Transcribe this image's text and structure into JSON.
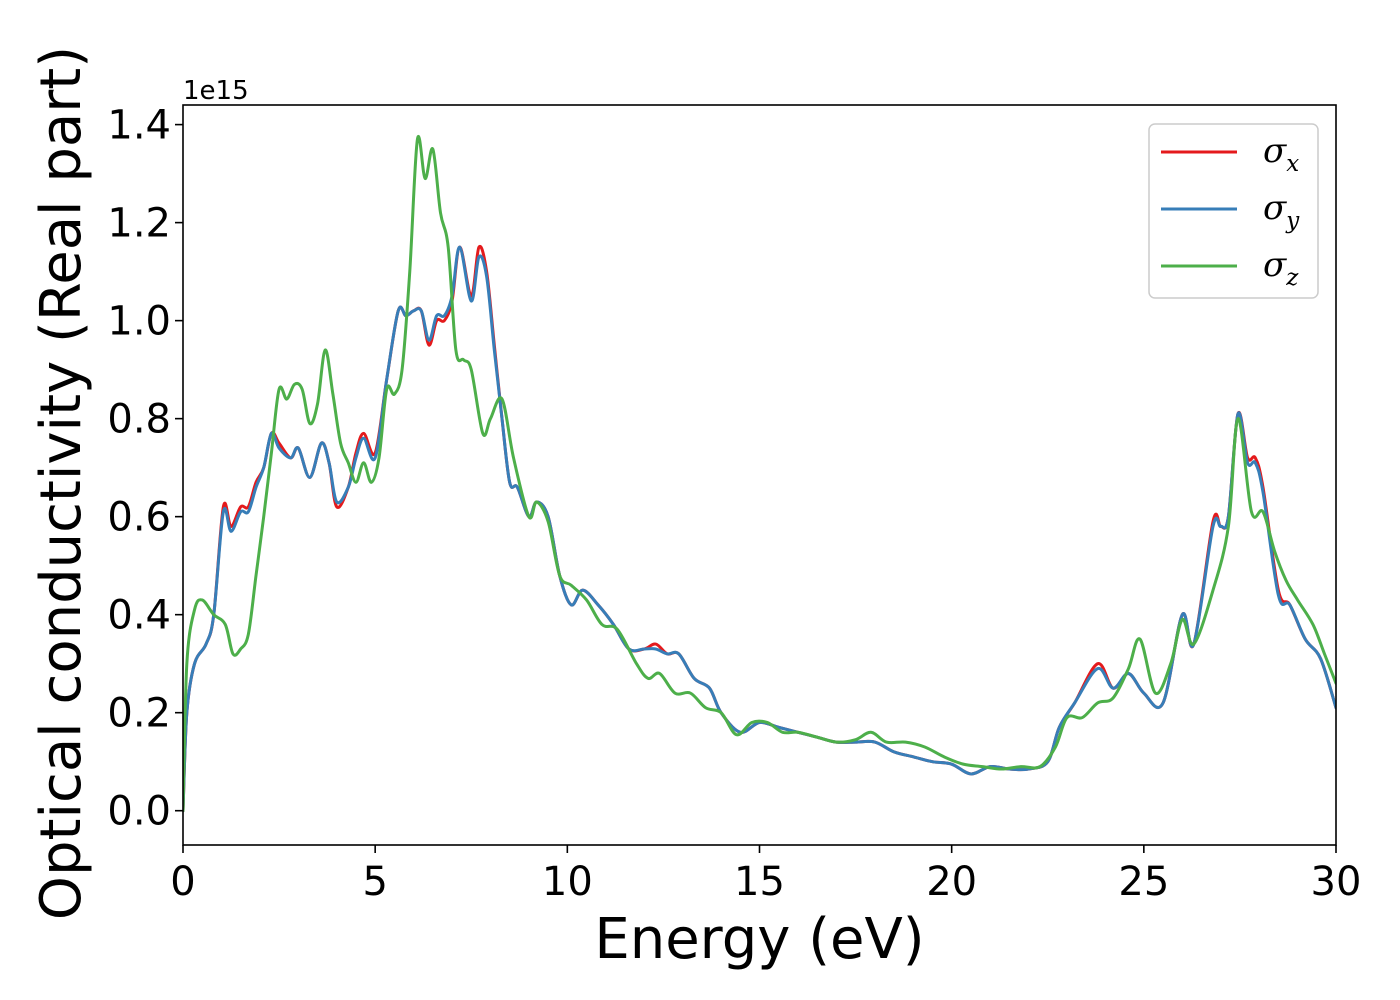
{
  "chart_data": {
    "type": "line",
    "xlabel": "Energy (eV)",
    "ylabel": "Optical conductivity (Real part)",
    "y_offset_text": "1e15",
    "y_multiplier": 1000000000000000.0,
    "xlim": [
      0,
      30
    ],
    "ylim": [
      -0.07,
      1.44
    ],
    "xticks": [
      0,
      5,
      10,
      15,
      20,
      25,
      30
    ],
    "xtick_labels": [
      "0",
      "5",
      "10",
      "15",
      "20",
      "25",
      "30"
    ],
    "yticks": [
      0.0,
      0.2,
      0.4,
      0.6,
      0.8,
      1.0,
      1.2,
      1.4
    ],
    "ytick_labels": [
      "0.0",
      "0.2",
      "0.4",
      "0.6",
      "0.8",
      "1.0",
      "1.2",
      "1.4"
    ],
    "grid": false,
    "legend_position": "top-right",
    "series": [
      {
        "name": "σx",
        "legend_symbol": "σ",
        "legend_subscript": "x",
        "color": "#e41a1c",
        "points": [
          [
            0,
            0
          ],
          [
            0.1,
            0.2
          ],
          [
            0.3,
            0.3
          ],
          [
            0.6,
            0.34
          ],
          [
            0.8,
            0.4
          ],
          [
            1.05,
            0.62
          ],
          [
            1.25,
            0.58
          ],
          [
            1.5,
            0.62
          ],
          [
            1.7,
            0.62
          ],
          [
            1.9,
            0.67
          ],
          [
            2.1,
            0.7
          ],
          [
            2.3,
            0.77
          ],
          [
            2.5,
            0.75
          ],
          [
            2.8,
            0.72
          ],
          [
            3.0,
            0.74
          ],
          [
            3.3,
            0.68
          ],
          [
            3.6,
            0.75
          ],
          [
            3.8,
            0.71
          ],
          [
            4.0,
            0.62
          ],
          [
            4.3,
            0.66
          ],
          [
            4.5,
            0.73
          ],
          [
            4.7,
            0.77
          ],
          [
            5.0,
            0.73
          ],
          [
            5.3,
            0.88
          ],
          [
            5.6,
            1.02
          ],
          [
            5.8,
            1.01
          ],
          [
            6.0,
            1.02
          ],
          [
            6.2,
            1.02
          ],
          [
            6.4,
            0.95
          ],
          [
            6.6,
            1.0
          ],
          [
            6.8,
            1.0
          ],
          [
            7.0,
            1.04
          ],
          [
            7.2,
            1.15
          ],
          [
            7.5,
            1.05
          ],
          [
            7.7,
            1.15
          ],
          [
            7.9,
            1.1
          ],
          [
            8.1,
            0.95
          ],
          [
            8.3,
            0.8
          ],
          [
            8.5,
            0.67
          ],
          [
            8.7,
            0.66
          ],
          [
            9.0,
            0.6
          ],
          [
            9.2,
            0.63
          ],
          [
            9.5,
            0.6
          ],
          [
            9.8,
            0.48
          ],
          [
            10.1,
            0.42
          ],
          [
            10.4,
            0.45
          ],
          [
            10.8,
            0.42
          ],
          [
            11.2,
            0.38
          ],
          [
            11.6,
            0.33
          ],
          [
            12.0,
            0.33
          ],
          [
            12.3,
            0.34
          ],
          [
            12.6,
            0.32
          ],
          [
            12.9,
            0.32
          ],
          [
            13.3,
            0.27
          ],
          [
            13.7,
            0.25
          ],
          [
            14.0,
            0.2
          ],
          [
            14.5,
            0.16
          ],
          [
            15.0,
            0.18
          ],
          [
            15.5,
            0.17
          ],
          [
            16.0,
            0.16
          ],
          [
            16.5,
            0.15
          ],
          [
            17.0,
            0.14
          ],
          [
            17.5,
            0.14
          ],
          [
            18.0,
            0.14
          ],
          [
            18.5,
            0.12
          ],
          [
            19.0,
            0.11
          ],
          [
            19.5,
            0.1
          ],
          [
            20.0,
            0.095
          ],
          [
            20.5,
            0.075
          ],
          [
            21.0,
            0.09
          ],
          [
            21.5,
            0.085
          ],
          [
            22.0,
            0.085
          ],
          [
            22.5,
            0.1
          ],
          [
            22.8,
            0.17
          ],
          [
            23.2,
            0.22
          ],
          [
            23.8,
            0.3
          ],
          [
            24.2,
            0.25
          ],
          [
            24.6,
            0.28
          ],
          [
            25.0,
            0.24
          ],
          [
            25.5,
            0.22
          ],
          [
            26.0,
            0.4
          ],
          [
            26.3,
            0.34
          ],
          [
            26.8,
            0.59
          ],
          [
            27.0,
            0.58
          ],
          [
            27.2,
            0.6
          ],
          [
            27.45,
            0.81
          ],
          [
            27.7,
            0.72
          ],
          [
            27.9,
            0.72
          ],
          [
            28.1,
            0.66
          ],
          [
            28.5,
            0.45
          ],
          [
            28.8,
            0.42
          ],
          [
            29.2,
            0.35
          ],
          [
            29.6,
            0.31
          ],
          [
            30.0,
            0.21
          ]
        ]
      },
      {
        "name": "σy",
        "legend_symbol": "σ",
        "legend_subscript": "y",
        "color": "#377eb8",
        "points": [
          [
            0,
            0
          ],
          [
            0.1,
            0.2
          ],
          [
            0.3,
            0.3
          ],
          [
            0.6,
            0.34
          ],
          [
            0.8,
            0.4
          ],
          [
            1.05,
            0.61
          ],
          [
            1.25,
            0.57
          ],
          [
            1.5,
            0.61
          ],
          [
            1.7,
            0.61
          ],
          [
            1.9,
            0.66
          ],
          [
            2.1,
            0.7
          ],
          [
            2.3,
            0.77
          ],
          [
            2.5,
            0.74
          ],
          [
            2.8,
            0.72
          ],
          [
            3.0,
            0.74
          ],
          [
            3.3,
            0.68
          ],
          [
            3.6,
            0.75
          ],
          [
            3.8,
            0.71
          ],
          [
            4.0,
            0.63
          ],
          [
            4.3,
            0.66
          ],
          [
            4.5,
            0.72
          ],
          [
            4.7,
            0.76
          ],
          [
            5.0,
            0.72
          ],
          [
            5.3,
            0.88
          ],
          [
            5.6,
            1.02
          ],
          [
            5.8,
            1.01
          ],
          [
            6.0,
            1.02
          ],
          [
            6.2,
            1.02
          ],
          [
            6.4,
            0.96
          ],
          [
            6.6,
            1.01
          ],
          [
            6.8,
            1.01
          ],
          [
            7.0,
            1.05
          ],
          [
            7.2,
            1.15
          ],
          [
            7.5,
            1.04
          ],
          [
            7.7,
            1.13
          ],
          [
            7.9,
            1.09
          ],
          [
            8.1,
            0.94
          ],
          [
            8.3,
            0.8
          ],
          [
            8.5,
            0.67
          ],
          [
            8.7,
            0.66
          ],
          [
            9.0,
            0.6
          ],
          [
            9.2,
            0.63
          ],
          [
            9.5,
            0.6
          ],
          [
            9.8,
            0.48
          ],
          [
            10.1,
            0.42
          ],
          [
            10.4,
            0.45
          ],
          [
            10.8,
            0.42
          ],
          [
            11.2,
            0.38
          ],
          [
            11.6,
            0.33
          ],
          [
            12.0,
            0.33
          ],
          [
            12.3,
            0.33
          ],
          [
            12.6,
            0.32
          ],
          [
            12.9,
            0.32
          ],
          [
            13.3,
            0.27
          ],
          [
            13.7,
            0.25
          ],
          [
            14.0,
            0.2
          ],
          [
            14.5,
            0.16
          ],
          [
            15.0,
            0.18
          ],
          [
            15.5,
            0.17
          ],
          [
            16.0,
            0.16
          ],
          [
            16.5,
            0.15
          ],
          [
            17.0,
            0.14
          ],
          [
            17.5,
            0.14
          ],
          [
            18.0,
            0.14
          ],
          [
            18.5,
            0.12
          ],
          [
            19.0,
            0.11
          ],
          [
            19.5,
            0.1
          ],
          [
            20.0,
            0.095
          ],
          [
            20.5,
            0.075
          ],
          [
            21.0,
            0.09
          ],
          [
            21.5,
            0.085
          ],
          [
            22.0,
            0.085
          ],
          [
            22.5,
            0.1
          ],
          [
            22.8,
            0.17
          ],
          [
            23.2,
            0.22
          ],
          [
            23.8,
            0.29
          ],
          [
            24.2,
            0.25
          ],
          [
            24.6,
            0.28
          ],
          [
            25.0,
            0.24
          ],
          [
            25.5,
            0.22
          ],
          [
            26.0,
            0.4
          ],
          [
            26.3,
            0.34
          ],
          [
            26.8,
            0.58
          ],
          [
            27.0,
            0.58
          ],
          [
            27.2,
            0.6
          ],
          [
            27.45,
            0.81
          ],
          [
            27.7,
            0.71
          ],
          [
            27.9,
            0.71
          ],
          [
            28.1,
            0.65
          ],
          [
            28.5,
            0.44
          ],
          [
            28.8,
            0.42
          ],
          [
            29.2,
            0.35
          ],
          [
            29.6,
            0.31
          ],
          [
            30.0,
            0.21
          ]
        ]
      },
      {
        "name": "σz",
        "legend_symbol": "σ",
        "legend_subscript": "z",
        "color": "#4daf4a",
        "points": [
          [
            0,
            0
          ],
          [
            0.1,
            0.3
          ],
          [
            0.3,
            0.41
          ],
          [
            0.5,
            0.43
          ],
          [
            0.8,
            0.4
          ],
          [
            1.1,
            0.38
          ],
          [
            1.3,
            0.32
          ],
          [
            1.5,
            0.33
          ],
          [
            1.7,
            0.36
          ],
          [
            1.9,
            0.48
          ],
          [
            2.1,
            0.6
          ],
          [
            2.3,
            0.73
          ],
          [
            2.5,
            0.86
          ],
          [
            2.7,
            0.84
          ],
          [
            2.9,
            0.87
          ],
          [
            3.1,
            0.86
          ],
          [
            3.3,
            0.79
          ],
          [
            3.5,
            0.83
          ],
          [
            3.7,
            0.94
          ],
          [
            3.9,
            0.85
          ],
          [
            4.1,
            0.75
          ],
          [
            4.3,
            0.71
          ],
          [
            4.5,
            0.67
          ],
          [
            4.7,
            0.71
          ],
          [
            4.9,
            0.67
          ],
          [
            5.1,
            0.72
          ],
          [
            5.3,
            0.86
          ],
          [
            5.5,
            0.85
          ],
          [
            5.7,
            0.9
          ],
          [
            5.9,
            1.1
          ],
          [
            6.1,
            1.37
          ],
          [
            6.3,
            1.29
          ],
          [
            6.5,
            1.35
          ],
          [
            6.7,
            1.22
          ],
          [
            6.9,
            1.15
          ],
          [
            7.1,
            0.94
          ],
          [
            7.3,
            0.92
          ],
          [
            7.5,
            0.9
          ],
          [
            7.8,
            0.77
          ],
          [
            8.0,
            0.8
          ],
          [
            8.3,
            0.84
          ],
          [
            8.6,
            0.72
          ],
          [
            9.0,
            0.6
          ],
          [
            9.2,
            0.63
          ],
          [
            9.5,
            0.59
          ],
          [
            9.8,
            0.48
          ],
          [
            10.1,
            0.46
          ],
          [
            10.5,
            0.43
          ],
          [
            10.9,
            0.38
          ],
          [
            11.3,
            0.37
          ],
          [
            11.8,
            0.3
          ],
          [
            12.1,
            0.27
          ],
          [
            12.4,
            0.28
          ],
          [
            12.8,
            0.24
          ],
          [
            13.2,
            0.24
          ],
          [
            13.6,
            0.21
          ],
          [
            14.0,
            0.2
          ],
          [
            14.4,
            0.155
          ],
          [
            14.8,
            0.18
          ],
          [
            15.2,
            0.18
          ],
          [
            15.6,
            0.16
          ],
          [
            16.0,
            0.16
          ],
          [
            16.5,
            0.15
          ],
          [
            17.0,
            0.14
          ],
          [
            17.5,
            0.145
          ],
          [
            17.9,
            0.16
          ],
          [
            18.3,
            0.14
          ],
          [
            18.8,
            0.14
          ],
          [
            19.3,
            0.13
          ],
          [
            19.8,
            0.11
          ],
          [
            20.3,
            0.095
          ],
          [
            20.8,
            0.09
          ],
          [
            21.3,
            0.085
          ],
          [
            21.8,
            0.09
          ],
          [
            22.3,
            0.09
          ],
          [
            22.7,
            0.13
          ],
          [
            23.0,
            0.19
          ],
          [
            23.4,
            0.19
          ],
          [
            23.8,
            0.22
          ],
          [
            24.2,
            0.23
          ],
          [
            24.6,
            0.29
          ],
          [
            24.9,
            0.35
          ],
          [
            25.3,
            0.24
          ],
          [
            25.7,
            0.3
          ],
          [
            26.0,
            0.39
          ],
          [
            26.3,
            0.34
          ],
          [
            26.8,
            0.45
          ],
          [
            27.2,
            0.58
          ],
          [
            27.45,
            0.8
          ],
          [
            27.8,
            0.61
          ],
          [
            28.1,
            0.61
          ],
          [
            28.4,
            0.53
          ],
          [
            28.7,
            0.47
          ],
          [
            29.0,
            0.43
          ],
          [
            29.4,
            0.38
          ],
          [
            29.7,
            0.32
          ],
          [
            30.0,
            0.26
          ]
        ]
      }
    ]
  }
}
